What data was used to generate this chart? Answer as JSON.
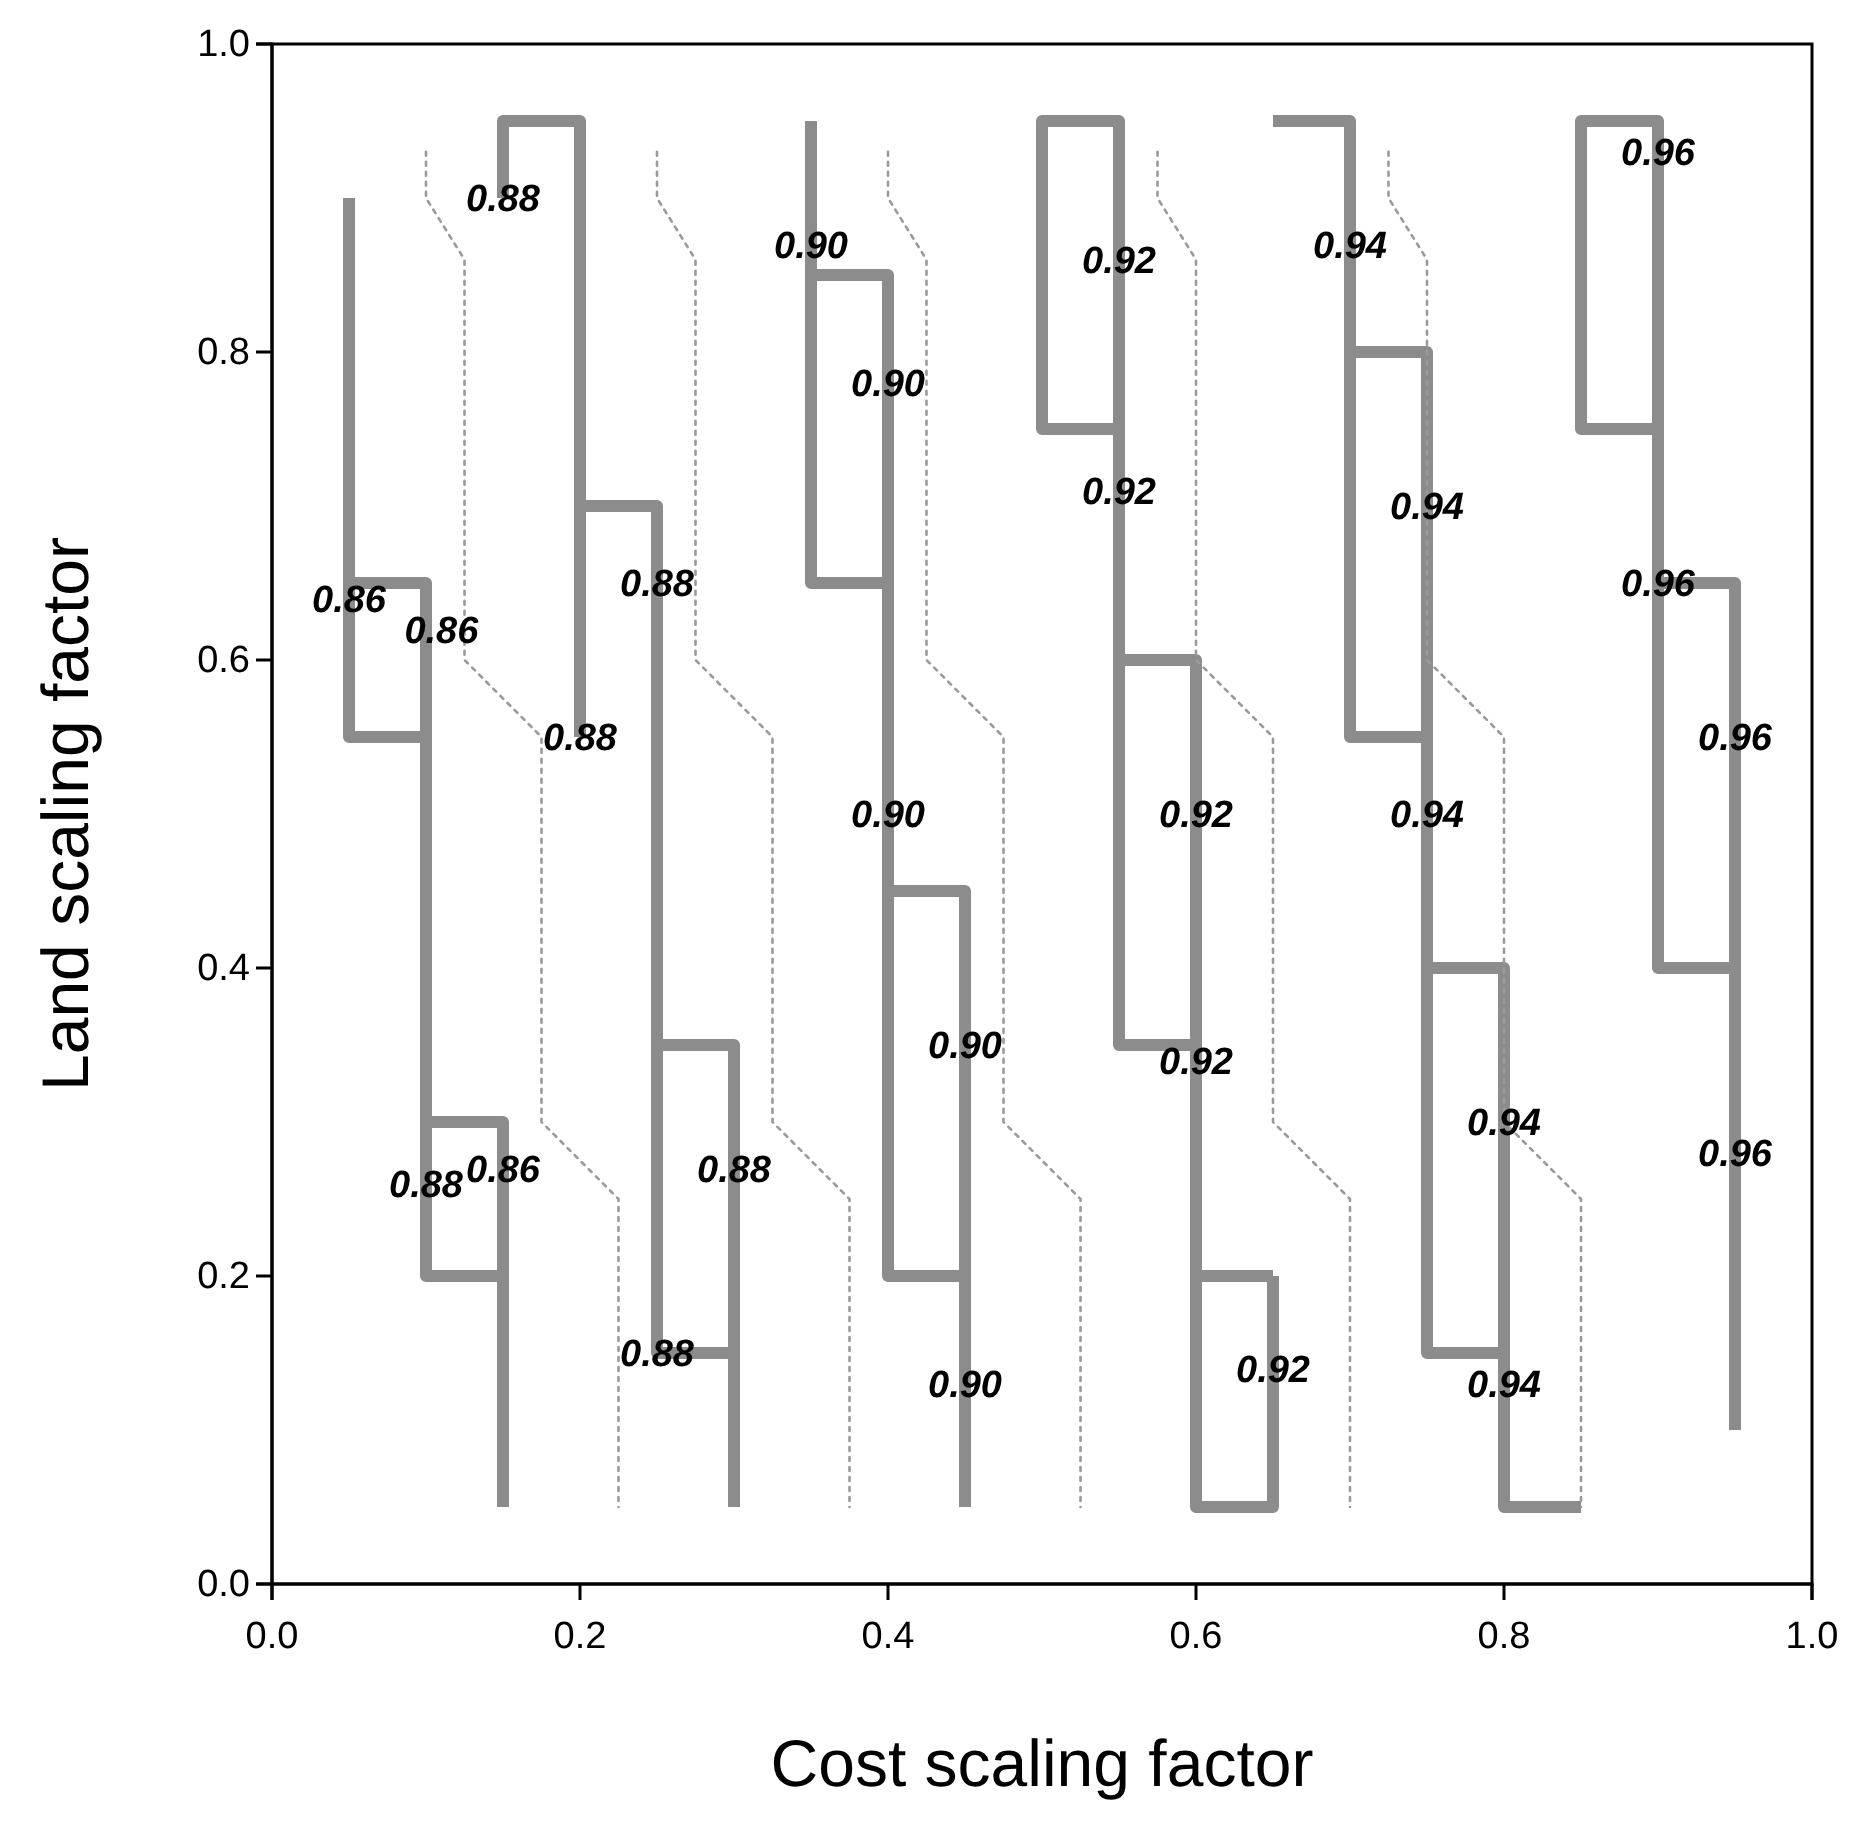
{
  "chart_data": {
    "type": "line",
    "xlabel": "Cost scaling factor",
    "ylabel": "Land scaling factor",
    "xlim": [
      0,
      1
    ],
    "ylim": [
      0,
      1
    ],
    "xticks": [
      {
        "value": 0,
        "label": "0.0"
      },
      0.2,
      0.4,
      0.6,
      0.8,
      {
        "value": 1,
        "label": "1.0"
      }
    ],
    "yticks": [
      {
        "value": 0,
        "label": "0.0"
      },
      0.2,
      0.4,
      0.6,
      0.8,
      {
        "value": 1,
        "label": "1.0"
      }
    ],
    "series": [
      {
        "color": "#8c8c8c",
        "x": [
          0.05,
          0.05,
          0.1
        ],
        "values": [
          0.9,
          0.55,
          0.55
        ]
      },
      {
        "color": "#8c8c8c",
        "x": [
          0.05,
          0.1,
          0.1,
          0.15,
          0.15
        ],
        "values": [
          0.65,
          0.65,
          0.2,
          0.2,
          0.05
        ]
      },
      {
        "color": "#8c8c8c",
        "x": [
          0.1,
          0.15,
          0.15
        ],
        "values": [
          0.3,
          0.3,
          0.2
        ]
      },
      {
        "color": "#8c8c8c",
        "x": [
          0.15,
          0.15,
          0.2,
          0.2
        ],
        "values": [
          0.9,
          0.95,
          0.95,
          0.55
        ]
      },
      {
        "color": "#8c8c8c",
        "x": [
          0.2,
          0.25,
          0.25,
          0.3
        ],
        "values": [
          0.7,
          0.7,
          0.15,
          0.15
        ]
      },
      {
        "color": "#8c8c8c",
        "x": [
          0.25,
          0.3,
          0.3
        ],
        "values": [
          0.35,
          0.35,
          0.05
        ]
      },
      {
        "color": "#8c8c8c",
        "x": [
          0.35,
          0.35,
          0.4
        ],
        "values": [
          0.95,
          0.65,
          0.65
        ]
      },
      {
        "color": "#8c8c8c",
        "x": [
          0.35,
          0.4,
          0.4,
          0.45,
          0.45
        ],
        "values": [
          0.85,
          0.85,
          0.2,
          0.2,
          0.05
        ]
      },
      {
        "color": "#8c8c8c",
        "x": [
          0.4,
          0.45,
          0.45
        ],
        "values": [
          0.45,
          0.45,
          0.2
        ]
      },
      {
        "color": "#8c8c8c",
        "x": [
          0.55,
          0.5,
          0.5,
          0.55,
          0.55,
          0.6
        ],
        "values": [
          0.75,
          0.75,
          0.95,
          0.95,
          0.35,
          0.35
        ]
      },
      {
        "color": "#8c8c8c",
        "x": [
          0.55,
          0.6,
          0.6,
          0.65,
          0.65
        ],
        "values": [
          0.6,
          0.6,
          0.05,
          0.05,
          0.2
        ]
      },
      {
        "color": "#8c8c8c",
        "x": [
          0.6,
          0.65
        ],
        "values": [
          0.2,
          0.2
        ]
      },
      {
        "color": "#8c8c8c",
        "x": [
          0.65,
          0.7,
          0.7,
          0.75
        ],
        "values": [
          0.95,
          0.95,
          0.55,
          0.55
        ]
      },
      {
        "color": "#8c8c8c",
        "x": [
          0.7,
          0.75,
          0.75,
          0.8
        ],
        "values": [
          0.8,
          0.8,
          0.15,
          0.15
        ]
      },
      {
        "color": "#8c8c8c",
        "x": [
          0.75,
          0.8,
          0.8,
          0.85
        ],
        "values": [
          0.4,
          0.4,
          0.05,
          0.05
        ]
      },
      {
        "color": "#8c8c8c",
        "x": [
          0.9,
          0.85,
          0.85,
          0.9,
          0.9,
          0.95
        ],
        "values": [
          0.75,
          0.75,
          0.95,
          0.95,
          0.4,
          0.4
        ]
      },
      {
        "color": "#8c8c8c",
        "x": [
          0.9,
          0.95,
          0.95
        ],
        "values": [
          0.65,
          0.65,
          0.1
        ]
      },
      {
        "color": "#9a9a9a",
        "line_style": "dotted",
        "x": [
          0.1,
          0.1,
          0.125,
          0.125,
          0.175,
          0.175,
          0.225,
          0.225
        ],
        "values": [
          0.93,
          0.9,
          0.86,
          0.6,
          0.55,
          0.3,
          0.25,
          0.05
        ]
      },
      {
        "color": "#9a9a9a",
        "line_style": "dotted",
        "x": [
          0.25,
          0.25,
          0.275,
          0.275,
          0.325,
          0.325,
          0.375,
          0.375
        ],
        "values": [
          0.93,
          0.9,
          0.86,
          0.6,
          0.55,
          0.3,
          0.25,
          0.05
        ]
      },
      {
        "color": "#9a9a9a",
        "line_style": "dotted",
        "x": [
          0.4,
          0.4,
          0.425,
          0.425,
          0.475,
          0.475,
          0.525,
          0.525
        ],
        "values": [
          0.93,
          0.9,
          0.86,
          0.6,
          0.55,
          0.3,
          0.25,
          0.05
        ]
      },
      {
        "color": "#9a9a9a",
        "line_style": "dotted",
        "x": [
          0.575,
          0.575,
          0.6,
          0.6,
          0.65,
          0.65,
          0.7,
          0.7
        ],
        "values": [
          0.93,
          0.9,
          0.86,
          0.6,
          0.55,
          0.3,
          0.25,
          0.05
        ]
      },
      {
        "color": "#9a9a9a",
        "line_style": "dotted",
        "x": [
          0.725,
          0.725,
          0.75,
          0.75,
          0.8,
          0.8,
          0.85,
          0.85
        ],
        "values": [
          0.93,
          0.9,
          0.86,
          0.6,
          0.55,
          0.3,
          0.25,
          0.05
        ]
      }
    ],
    "annotations": [
      {
        "text": "0.88",
        "x": 0.15,
        "y": 0.9
      },
      {
        "text": "0.90",
        "x": 0.35,
        "y": 0.87
      },
      {
        "text": "0.90",
        "x": 0.4,
        "y": 0.78
      },
      {
        "text": "0.92",
        "x": 0.55,
        "y": 0.86
      },
      {
        "text": "0.92",
        "x": 0.55,
        "y": 0.71
      },
      {
        "text": "0.94",
        "x": 0.7,
        "y": 0.87
      },
      {
        "text": "0.94",
        "x": 0.75,
        "y": 0.7
      },
      {
        "text": "0.96",
        "x": 0.9,
        "y": 0.93
      },
      {
        "text": "0.86",
        "x": 0.05,
        "y": 0.64
      },
      {
        "text": "0.86",
        "x": 0.11,
        "y": 0.62
      },
      {
        "text": "0.88",
        "x": 0.25,
        "y": 0.65
      },
      {
        "text": "0.88",
        "x": 0.2,
        "y": 0.55
      },
      {
        "text": "0.90",
        "x": 0.4,
        "y": 0.5
      },
      {
        "text": "0.90",
        "x": 0.45,
        "y": 0.35
      },
      {
        "text": "0.96",
        "x": 0.9,
        "y": 0.65
      },
      {
        "text": "0.96",
        "x": 0.95,
        "y": 0.55
      },
      {
        "text": "0.92",
        "x": 0.6,
        "y": 0.5
      },
      {
        "text": "0.94",
        "x": 0.75,
        "y": 0.5
      },
      {
        "text": "0.92",
        "x": 0.6,
        "y": 0.34
      },
      {
        "text": "0.86",
        "x": 0.15,
        "y": 0.27
      },
      {
        "text": "0.88",
        "x": 0.1,
        "y": 0.26
      },
      {
        "text": "0.88",
        "x": 0.3,
        "y": 0.27
      },
      {
        "text": "0.88",
        "x": 0.25,
        "y": 0.15
      },
      {
        "text": "0.90",
        "x": 0.45,
        "y": 0.13
      },
      {
        "text": "0.94",
        "x": 0.8,
        "y": 0.3
      },
      {
        "text": "0.96",
        "x": 0.95,
        "y": 0.28
      },
      {
        "text": "0.92",
        "x": 0.65,
        "y": 0.14
      },
      {
        "text": "0.94",
        "x": 0.8,
        "y": 0.13
      }
    ]
  }
}
